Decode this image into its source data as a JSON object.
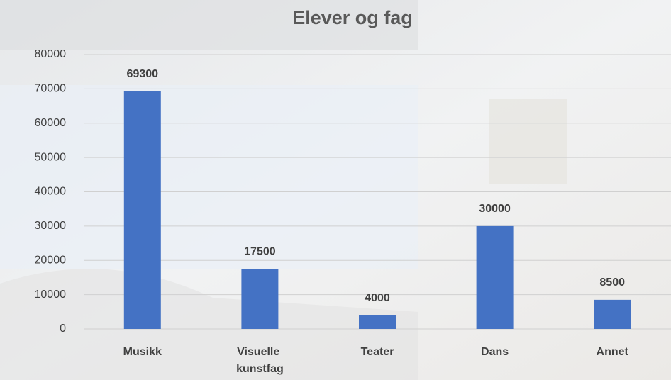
{
  "chart_data": {
    "type": "bar",
    "title": "Elever og fag",
    "categories": [
      "Musikk",
      "Visuelle kunstfag",
      "Teater",
      "Dans",
      "Annet"
    ],
    "values": [
      69300,
      17500,
      4000,
      30000,
      8500
    ],
    "color": "#4472c4",
    "ylim": [
      0,
      80000
    ],
    "yticks": [
      0,
      10000,
      20000,
      30000,
      40000,
      50000,
      60000,
      70000,
      80000
    ],
    "grid": true
  }
}
